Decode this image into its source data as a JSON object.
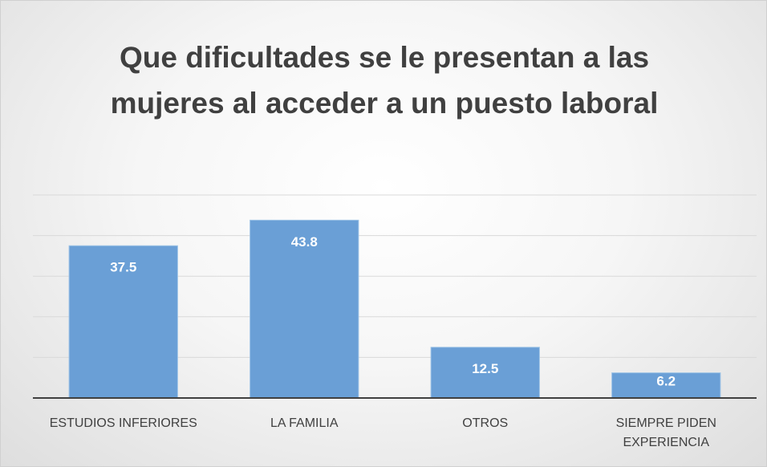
{
  "chart_data": {
    "type": "bar",
    "title": "Que dificultades se le presentan a las mujeres al acceder a un puesto laboral",
    "categories": [
      "ESTUDIOS INFERIORES",
      "LA FAMILIA",
      "OTROS",
      "SIEMPRE PIDEN EXPERIENCIA"
    ],
    "values": [
      37.5,
      43.8,
      12.5,
      6.2
    ],
    "color": "#6a9fd6",
    "ylim": [
      0,
      50
    ],
    "yticks": [
      0,
      10,
      20,
      30,
      40,
      50
    ],
    "grid": true
  }
}
